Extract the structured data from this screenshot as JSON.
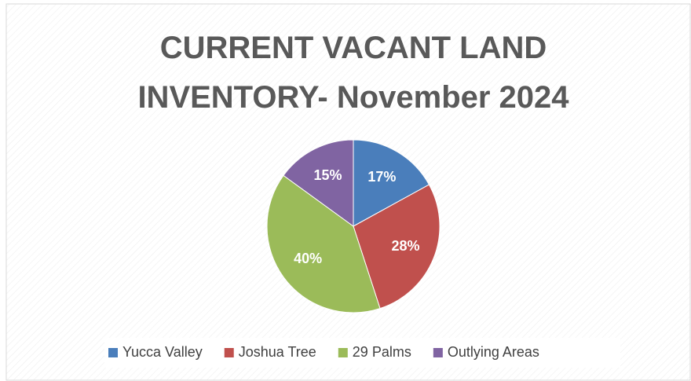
{
  "chart_data": {
    "type": "pie",
    "title": "CURRENT VACANT LAND INVENTORY- November 2024",
    "categories": [
      "Yucca Valley",
      "Joshua Tree",
      "29 Palms",
      "Outlying Areas"
    ],
    "values": [
      17,
      28,
      40,
      15
    ],
    "value_labels": [
      "17%",
      "28%",
      "40%",
      "15%"
    ],
    "colors": [
      "#4a7ebb",
      "#c0504d",
      "#9bbb59",
      "#8064a2"
    ],
    "legend": "bottom"
  }
}
